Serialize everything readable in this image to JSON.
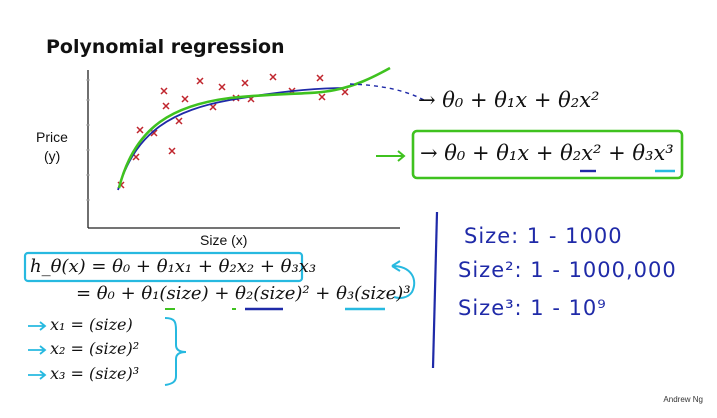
{
  "slide": {
    "title": "Polynomial regression",
    "credit": "Andrew Ng"
  },
  "plot": {
    "ylabel_line1": "Price",
    "ylabel_line2": "(y)",
    "xlabel": "Size (x)"
  },
  "models": {
    "quadratic": "→ θ₀ + θ₁x + θ₂x²",
    "cubic": "→ θ₀ + θ₁x + θ₂x² + θ₃x³"
  },
  "hypothesis": {
    "line1": "h_θ(x) = θ₀ + θ₁x₁ + θ₂x₂ + θ₃x₃",
    "line2": "= θ₀ + θ₁(size) + θ₂(size)² + θ₃(size)³"
  },
  "features": [
    "x₁ = (size)",
    "x₂ = (size)²",
    "x₃ = (size)³"
  ],
  "ranges": [
    "Size:  1 - 1000",
    "Size²:  1 - 1000,000",
    "Size³:  1 - 10⁹"
  ],
  "colors": {
    "green": "#3fc21f",
    "blue": "#1f2aa8",
    "cyan": "#27b9e0",
    "red_x": "#c0262e"
  }
}
